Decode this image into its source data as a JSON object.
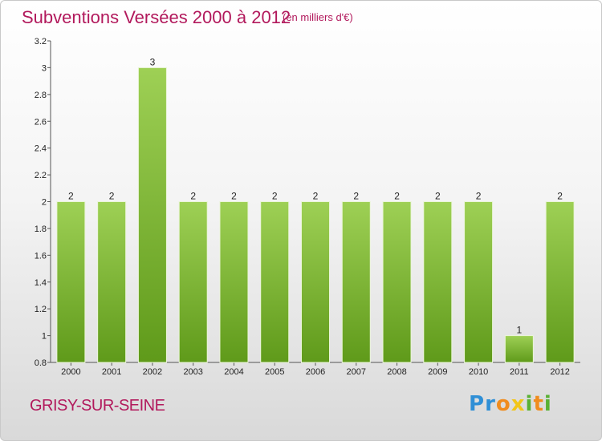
{
  "header": {
    "title": "Subventions Versées 2000 à 2012",
    "unit_note": "(en milliers d'€)"
  },
  "footer": {
    "commune": "GRISY-SUR-SEINE",
    "logo_letters": [
      "P",
      "r",
      "o",
      "x",
      "i",
      "t",
      "i"
    ]
  },
  "colors": {
    "accent": "#b2195c",
    "bar_top": "#9ed055",
    "bar_bottom": "#5f9a1a"
  },
  "chart_data": {
    "type": "bar",
    "title": "Subventions Versées 2000 à 2012",
    "subtitle": "(en milliers d'€)",
    "categories": [
      "2000",
      "2001",
      "2002",
      "2003",
      "2004",
      "2005",
      "2006",
      "2007",
      "2008",
      "2009",
      "2010",
      "2011",
      "2012"
    ],
    "values": [
      2,
      2,
      3,
      2,
      2,
      2,
      2,
      2,
      2,
      2,
      2,
      1,
      2
    ],
    "data_labels": [
      "2",
      "2",
      "3",
      "2",
      "2",
      "2",
      "2",
      "2",
      "2",
      "2",
      "2",
      "1",
      "2"
    ],
    "ylim": [
      0.8,
      3.2
    ],
    "yticks": [
      "0.8",
      "1",
      "1.2",
      "1.4",
      "1.6",
      "1.8",
      "2",
      "2.2",
      "2.4",
      "2.6",
      "2.8",
      "3",
      "3.2"
    ],
    "xlabel": "",
    "ylabel": "",
    "grid": false,
    "legend": "none"
  }
}
